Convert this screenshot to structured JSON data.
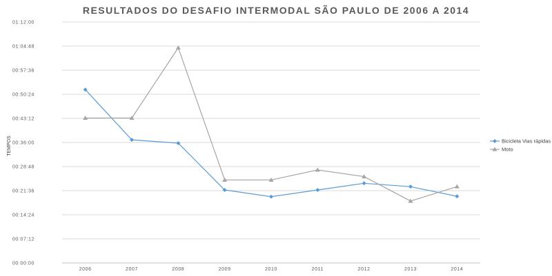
{
  "chart_data": {
    "type": "line",
    "title": "RESULTADOS DO DESAFIO INTERMODAL SÃO PAULO DE 2006 A 2014",
    "ylabel": "TEMPOS",
    "xlabel": "",
    "categories": [
      "2006",
      "2007",
      "2008",
      "2009",
      "2010",
      "2011",
      "2012",
      "2013",
      "2014"
    ],
    "y_ticks": [
      "00:00:00",
      "00:07:12",
      "00:14:24",
      "00:21:36",
      "00:28:48",
      "00:36:00",
      "00:43:12",
      "00:50:24",
      "00:57:36",
      "01:04:48",
      "01:12:00"
    ],
    "ylim_minutes": [
      0,
      72
    ],
    "grid": true,
    "legend": "right",
    "series": [
      {
        "name": "Bicicleta Vias rápidas",
        "color": "#5B9BD5",
        "marker": "diamond",
        "values_minutes": [
          51.8,
          36.8,
          35.8,
          21.8,
          19.8,
          21.8,
          23.8,
          22.8,
          19.9
        ]
      },
      {
        "name": "Moto",
        "color": "#A5A5A5",
        "marker": "triangle",
        "values_minutes": [
          43.3,
          43.3,
          64.3,
          24.8,
          24.8,
          27.8,
          25.8,
          18.5,
          22.8
        ]
      }
    ]
  }
}
